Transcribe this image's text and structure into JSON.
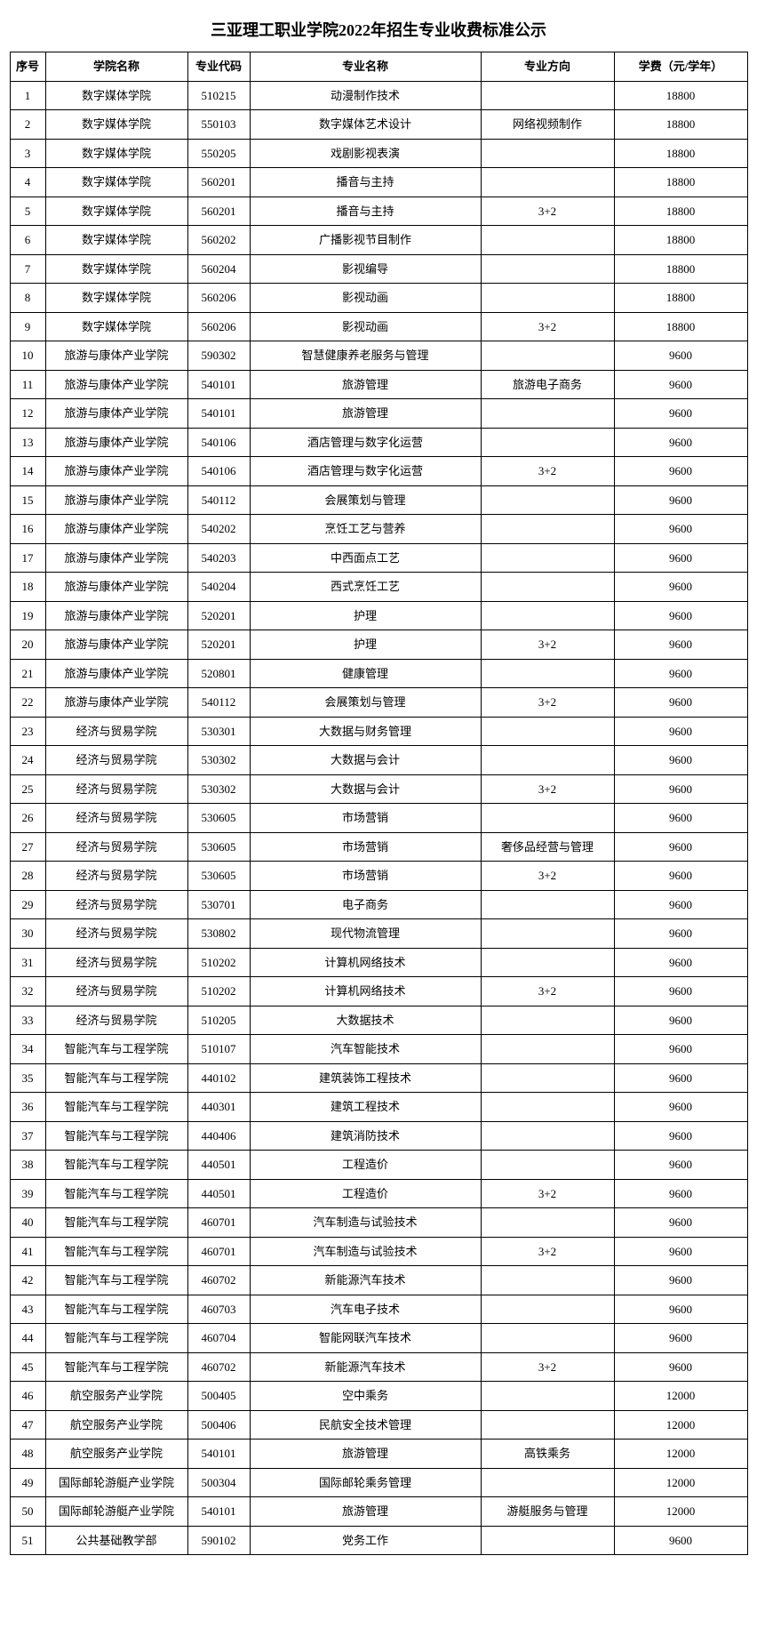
{
  "title": "三亚理工职业学院2022年招生专业收费标准公示",
  "columns": [
    "序号",
    "学院名称",
    "专业代码",
    "专业名称",
    "专业方向",
    "学费（元/学年）"
  ],
  "rows": [
    {
      "n": "1",
      "c": "数字媒体学院",
      "code": "510215",
      "m": "动漫制作技术",
      "d": "",
      "f": "18800"
    },
    {
      "n": "2",
      "c": "数字媒体学院",
      "code": "550103",
      "m": "数字媒体艺术设计",
      "d": "网络视频制作",
      "f": "18800"
    },
    {
      "n": "3",
      "c": "数字媒体学院",
      "code": "550205",
      "m": "戏剧影视表演",
      "d": "",
      "f": "18800"
    },
    {
      "n": "4",
      "c": "数字媒体学院",
      "code": "560201",
      "m": "播音与主持",
      "d": "",
      "f": "18800"
    },
    {
      "n": "5",
      "c": "数字媒体学院",
      "code": "560201",
      "m": "播音与主持",
      "d": "3+2",
      "f": "18800"
    },
    {
      "n": "6",
      "c": "数字媒体学院",
      "code": "560202",
      "m": "广播影视节目制作",
      "d": "",
      "f": "18800"
    },
    {
      "n": "7",
      "c": "数字媒体学院",
      "code": "560204",
      "m": "影视编导",
      "d": "",
      "f": "18800"
    },
    {
      "n": "8",
      "c": "数字媒体学院",
      "code": "560206",
      "m": "影视动画",
      "d": "",
      "f": "18800"
    },
    {
      "n": "9",
      "c": "数字媒体学院",
      "code": "560206",
      "m": "影视动画",
      "d": "3+2",
      "f": "18800"
    },
    {
      "n": "10",
      "c": "旅游与康体产业学院",
      "code": "590302",
      "m": "智慧健康养老服务与管理",
      "d": "",
      "f": "9600"
    },
    {
      "n": "11",
      "c": "旅游与康体产业学院",
      "code": "540101",
      "m": "旅游管理",
      "d": "旅游电子商务",
      "f": "9600"
    },
    {
      "n": "12",
      "c": "旅游与康体产业学院",
      "code": "540101",
      "m": "旅游管理",
      "d": "",
      "f": "9600"
    },
    {
      "n": "13",
      "c": "旅游与康体产业学院",
      "code": "540106",
      "m": "酒店管理与数字化运营",
      "d": "",
      "f": "9600"
    },
    {
      "n": "14",
      "c": "旅游与康体产业学院",
      "code": "540106",
      "m": "酒店管理与数字化运营",
      "d": "3+2",
      "f": "9600"
    },
    {
      "n": "15",
      "c": "旅游与康体产业学院",
      "code": "540112",
      "m": "会展策划与管理",
      "d": "",
      "f": "9600"
    },
    {
      "n": "16",
      "c": "旅游与康体产业学院",
      "code": "540202",
      "m": "烹饪工艺与营养",
      "d": "",
      "f": "9600"
    },
    {
      "n": "17",
      "c": "旅游与康体产业学院",
      "code": "540203",
      "m": "中西面点工艺",
      "d": "",
      "f": "9600"
    },
    {
      "n": "18",
      "c": "旅游与康体产业学院",
      "code": "540204",
      "m": "西式烹饪工艺",
      "d": "",
      "f": "9600"
    },
    {
      "n": "19",
      "c": "旅游与康体产业学院",
      "code": "520201",
      "m": "护理",
      "d": "",
      "f": "9600"
    },
    {
      "n": "20",
      "c": "旅游与康体产业学院",
      "code": "520201",
      "m": "护理",
      "d": "3+2",
      "f": "9600"
    },
    {
      "n": "21",
      "c": "旅游与康体产业学院",
      "code": "520801",
      "m": "健康管理",
      "d": "",
      "f": "9600"
    },
    {
      "n": "22",
      "c": "旅游与康体产业学院",
      "code": "540112",
      "m": "会展策划与管理",
      "d": "3+2",
      "f": "9600"
    },
    {
      "n": "23",
      "c": "经济与贸易学院",
      "code": "530301",
      "m": "大数据与财务管理",
      "d": "",
      "f": "9600"
    },
    {
      "n": "24",
      "c": "经济与贸易学院",
      "code": "530302",
      "m": "大数据与会计",
      "d": "",
      "f": "9600"
    },
    {
      "n": "25",
      "c": "经济与贸易学院",
      "code": "530302",
      "m": "大数据与会计",
      "d": "3+2",
      "f": "9600"
    },
    {
      "n": "26",
      "c": "经济与贸易学院",
      "code": "530605",
      "m": "市场营销",
      "d": "",
      "f": "9600"
    },
    {
      "n": "27",
      "c": "经济与贸易学院",
      "code": "530605",
      "m": "市场营销",
      "d": "奢侈品经营与管理",
      "f": "9600"
    },
    {
      "n": "28",
      "c": "经济与贸易学院",
      "code": "530605",
      "m": "市场营销",
      "d": "3+2",
      "f": "9600"
    },
    {
      "n": "29",
      "c": "经济与贸易学院",
      "code": "530701",
      "m": "电子商务",
      "d": "",
      "f": "9600"
    },
    {
      "n": "30",
      "c": "经济与贸易学院",
      "code": "530802",
      "m": "现代物流管理",
      "d": "",
      "f": "9600"
    },
    {
      "n": "31",
      "c": "经济与贸易学院",
      "code": "510202",
      "m": "计算机网络技术",
      "d": "",
      "f": "9600"
    },
    {
      "n": "32",
      "c": "经济与贸易学院",
      "code": "510202",
      "m": "计算机网络技术",
      "d": "3+2",
      "f": "9600"
    },
    {
      "n": "33",
      "c": "经济与贸易学院",
      "code": "510205",
      "m": "大数据技术",
      "d": "",
      "f": "9600"
    },
    {
      "n": "34",
      "c": "智能汽车与工程学院",
      "code": "510107",
      "m": "汽车智能技术",
      "d": "",
      "f": "9600"
    },
    {
      "n": "35",
      "c": "智能汽车与工程学院",
      "code": "440102",
      "m": "建筑装饰工程技术",
      "d": "",
      "f": "9600"
    },
    {
      "n": "36",
      "c": "智能汽车与工程学院",
      "code": "440301",
      "m": "建筑工程技术",
      "d": "",
      "f": "9600"
    },
    {
      "n": "37",
      "c": "智能汽车与工程学院",
      "code": "440406",
      "m": "建筑消防技术",
      "d": "",
      "f": "9600"
    },
    {
      "n": "38",
      "c": "智能汽车与工程学院",
      "code": "440501",
      "m": "工程造价",
      "d": "",
      "f": "9600"
    },
    {
      "n": "39",
      "c": "智能汽车与工程学院",
      "code": "440501",
      "m": "工程造价",
      "d": "3+2",
      "f": "9600"
    },
    {
      "n": "40",
      "c": "智能汽车与工程学院",
      "code": "460701",
      "m": "汽车制造与试验技术",
      "d": "",
      "f": "9600"
    },
    {
      "n": "41",
      "c": "智能汽车与工程学院",
      "code": "460701",
      "m": "汽车制造与试验技术",
      "d": "3+2",
      "f": "9600"
    },
    {
      "n": "42",
      "c": "智能汽车与工程学院",
      "code": "460702",
      "m": "新能源汽车技术",
      "d": "",
      "f": "9600"
    },
    {
      "n": "43",
      "c": "智能汽车与工程学院",
      "code": "460703",
      "m": "汽车电子技术",
      "d": "",
      "f": "9600"
    },
    {
      "n": "44",
      "c": "智能汽车与工程学院",
      "code": "460704",
      "m": "智能网联汽车技术",
      "d": "",
      "f": "9600"
    },
    {
      "n": "45",
      "c": "智能汽车与工程学院",
      "code": "460702",
      "m": "新能源汽车技术",
      "d": "3+2",
      "f": "9600"
    },
    {
      "n": "46",
      "c": "航空服务产业学院",
      "code": "500405",
      "m": "空中乘务",
      "d": "",
      "f": "12000"
    },
    {
      "n": "47",
      "c": "航空服务产业学院",
      "code": "500406",
      "m": "民航安全技术管理",
      "d": "",
      "f": "12000"
    },
    {
      "n": "48",
      "c": "航空服务产业学院",
      "code": "540101",
      "m": "旅游管理",
      "d": "高铁乘务",
      "f": "12000"
    },
    {
      "n": "49",
      "c": "国际邮轮游艇产业学院",
      "code": "500304",
      "m": "国际邮轮乘务管理",
      "d": "",
      "f": "12000"
    },
    {
      "n": "50",
      "c": "国际邮轮游艇产业学院",
      "code": "540101",
      "m": "旅游管理",
      "d": "游艇服务与管理",
      "f": "12000"
    },
    {
      "n": "51",
      "c": "公共基础教学部",
      "code": "590102",
      "m": "党务工作",
      "d": "",
      "f": "9600"
    }
  ]
}
